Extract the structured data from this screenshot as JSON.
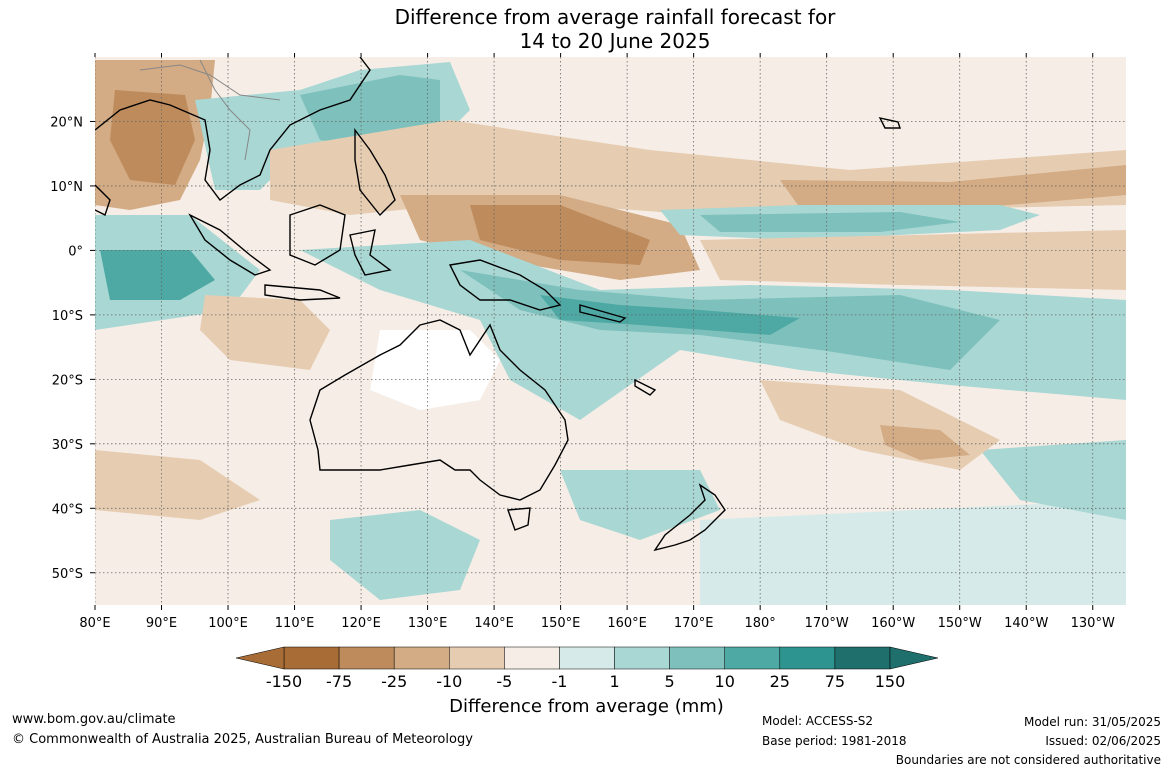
{
  "title": {
    "line1": "Difference from average rainfall forecast for",
    "line2": "14 to 20 June 2025"
  },
  "map": {
    "lon_labels": [
      "80°E",
      "90°E",
      "100°E",
      "110°E",
      "120°E",
      "130°E",
      "140°E",
      "150°E",
      "160°E",
      "170°E",
      "180°",
      "170°W",
      "160°W",
      "150°W",
      "140°W",
      "130°W"
    ],
    "lat_labels": [
      "20°N",
      "10°N",
      "0°",
      "10°S",
      "20°S",
      "30°S",
      "40°S",
      "50°S"
    ],
    "extent": {
      "lon_min": 80,
      "lon_max": 235,
      "lat_min": -55,
      "lat_max": 30
    },
    "gridlines": true
  },
  "colorbar": {
    "title": "Difference from average (mm)",
    "tick_labels": [
      "-150",
      "-75",
      "-25",
      "-10",
      "-5",
      "-1",
      "1",
      "5",
      "10",
      "25",
      "75",
      "150"
    ],
    "colors": [
      "#a86c36",
      "#bd8b5c",
      "#d3ab84",
      "#e6cdb2",
      "#f6ede6",
      "#ffffff",
      "#d6ebe9",
      "#a9d7d4",
      "#7ec0bc",
      "#4ea9a5",
      "#2e9490",
      "#1f6f6c"
    ],
    "extend_low_color": "#a86c36",
    "extend_high_color": "#1f6f6c"
  },
  "footer": {
    "website": "www.bom.gov.au/climate",
    "copyright": "© Commonwealth of Australia 2025, Australian Bureau of Meteorology",
    "model": "Model: ACCESS-S2",
    "base_period": "Base period: 1981-2018",
    "model_run": "Model run: 31/05/2025",
    "issued": "Issued: 02/06/2025",
    "disclaimer": "Boundaries are not considered authoritative"
  }
}
